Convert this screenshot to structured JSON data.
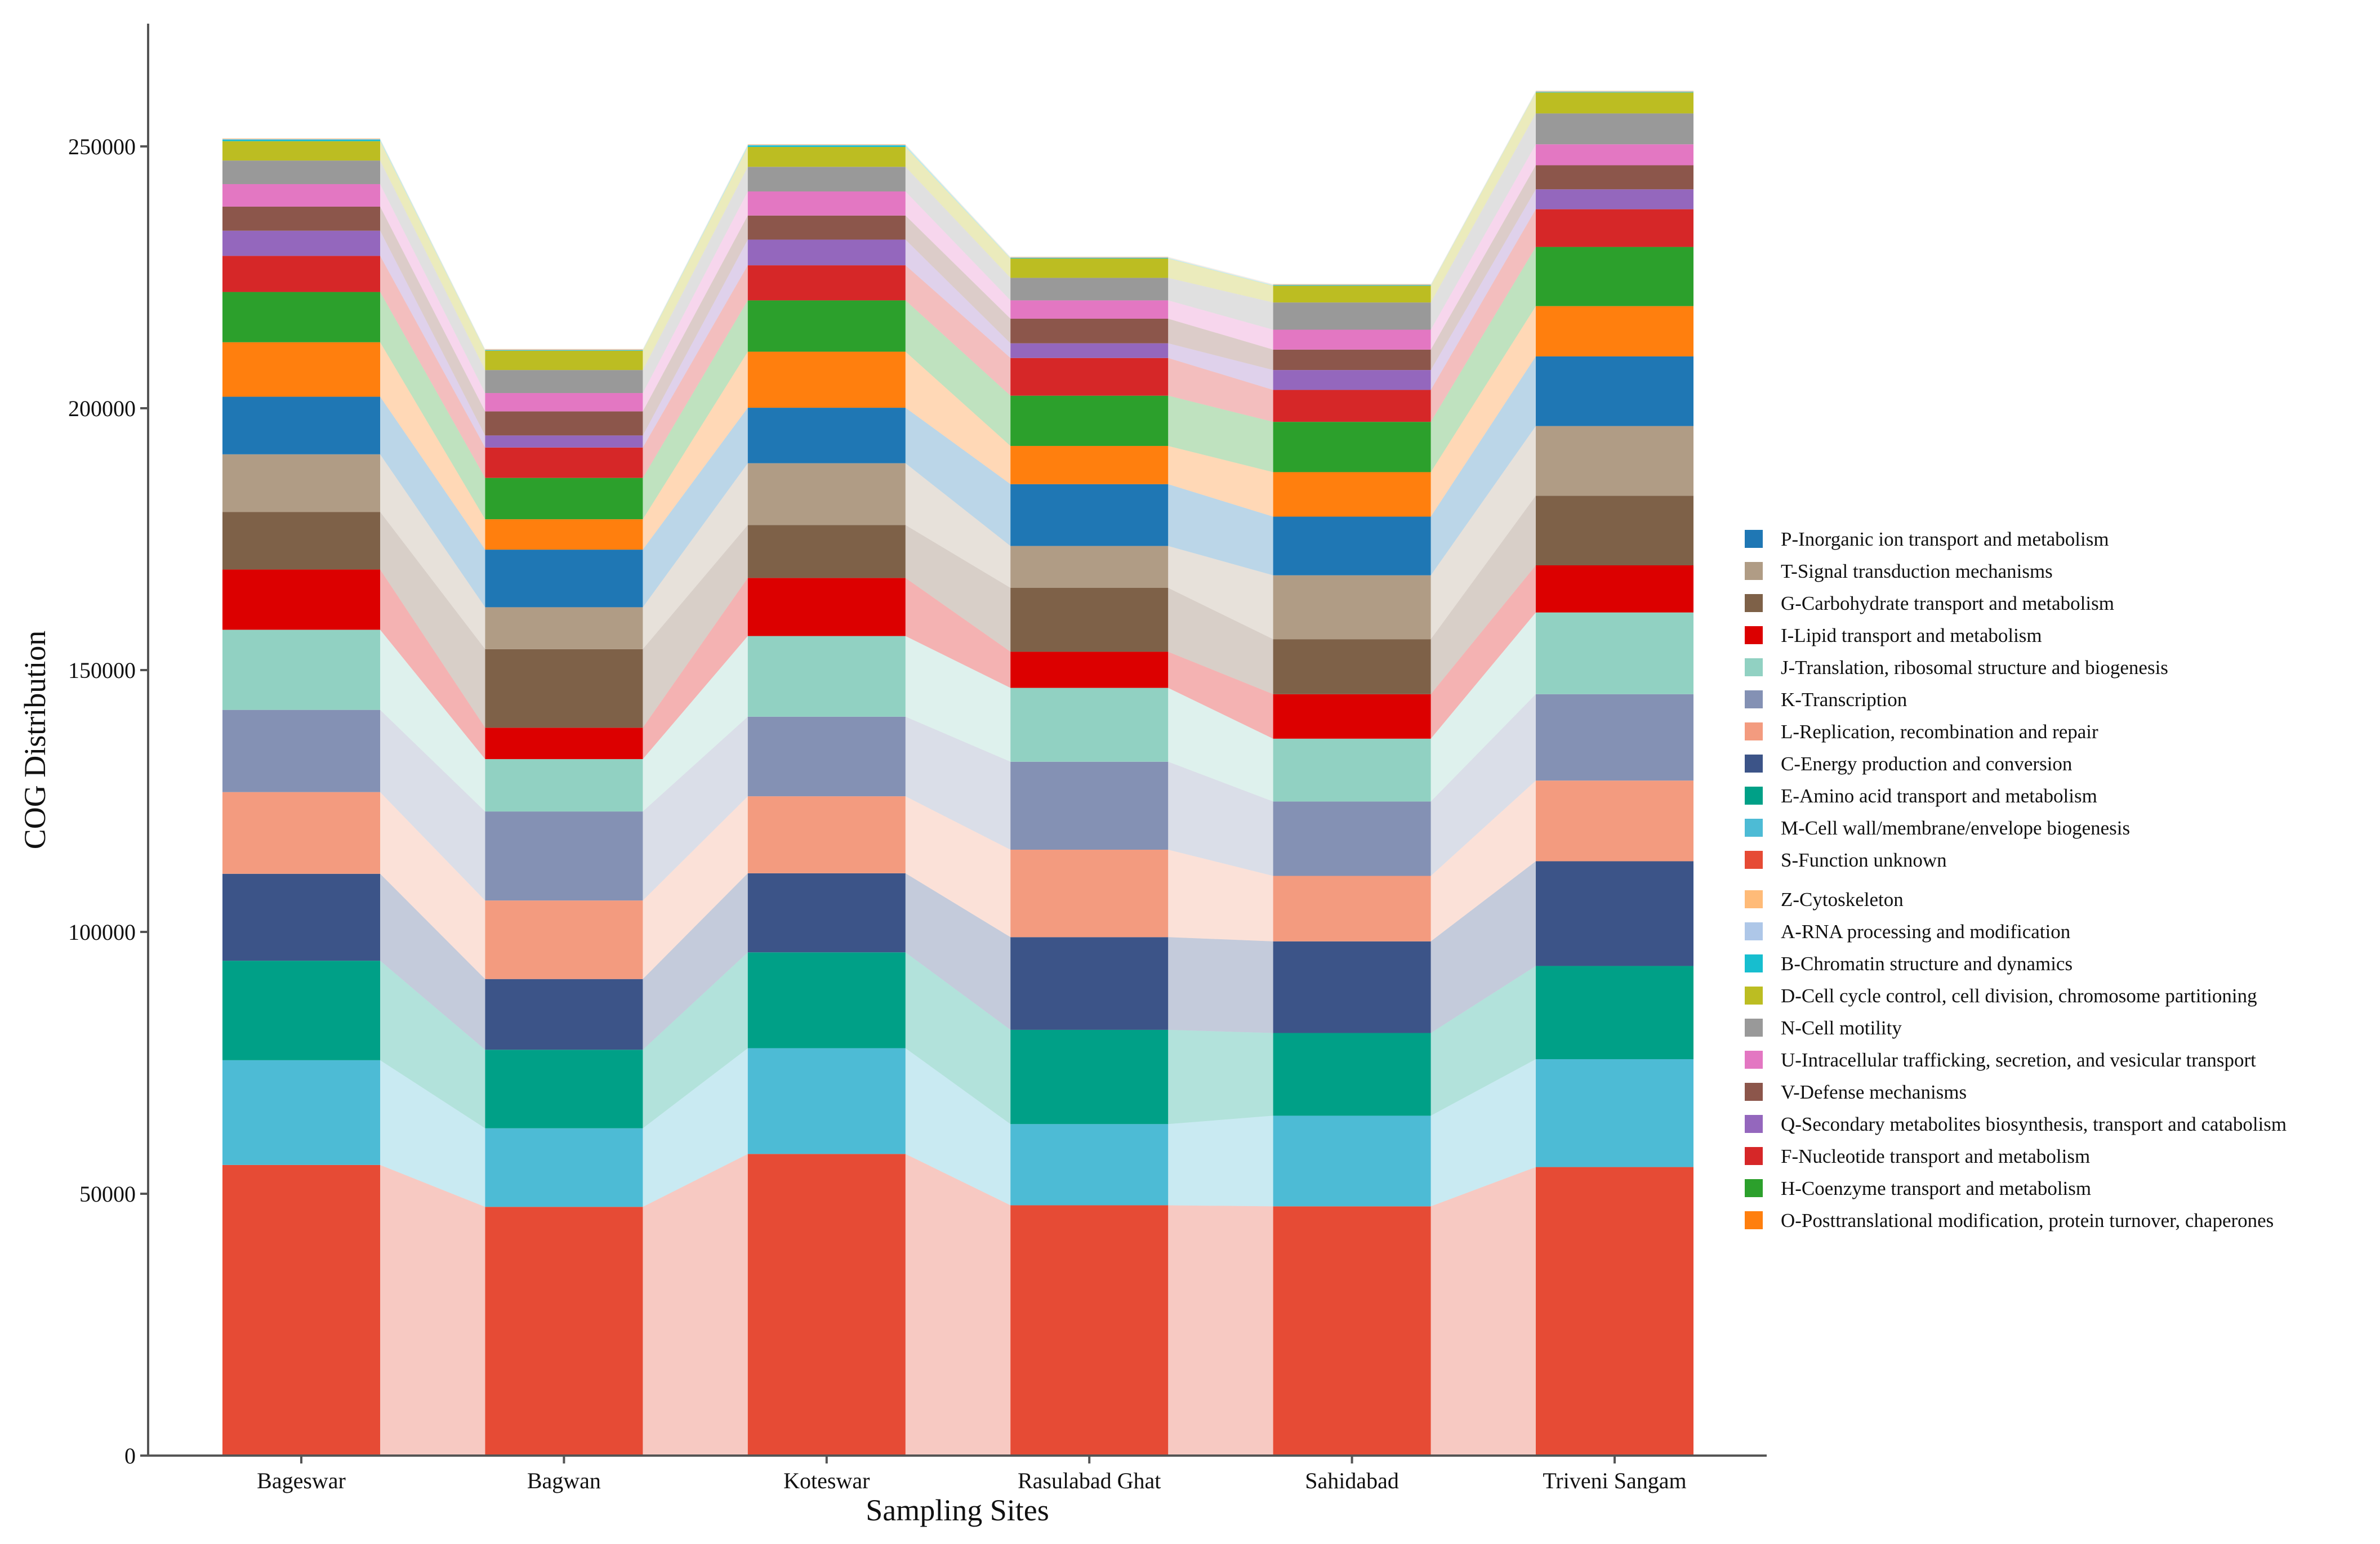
{
  "chart_data": {
    "type": "bar",
    "stacked": true,
    "xlabel": "Sampling Sites",
    "ylabel": "COG Distribution",
    "ylim": [
      0,
      260000
    ],
    "yticks": [
      0,
      50000,
      100000,
      150000,
      200000,
      250000
    ],
    "ytick_labels": [
      "0",
      "50000",
      "100000",
      "150000",
      "200000",
      "250000"
    ],
    "categories": [
      "Bageswar",
      "Bagwan",
      "Koteswar",
      "Rasulabad Ghat",
      "Sahidabad",
      "Triveni Sangam"
    ],
    "grid": false,
    "legend_position": "right",
    "series": [
      {
        "name": "S-Function unknown",
        "color": "#E64B35",
        "values": [
          55500,
          47500,
          57600,
          47800,
          47600,
          55100
        ]
      },
      {
        "name": "M-Cell wall/membrane/envelope biogenesis",
        "color": "#4DBBD5",
        "values": [
          20000,
          15000,
          20200,
          15500,
          17300,
          20600
        ]
      },
      {
        "name": "E-Amino acid transport and metabolism",
        "color": "#00A087",
        "values": [
          19000,
          15000,
          18300,
          18000,
          15800,
          17800
        ]
      },
      {
        "name": "C-Energy production and conversion",
        "color": "#3C5488",
        "values": [
          16600,
          13500,
          15100,
          17700,
          17500,
          20000
        ]
      },
      {
        "name": "L-Replication, recombination and repair",
        "color": "#F39B7F",
        "values": [
          15600,
          15000,
          14700,
          16700,
          12500,
          15400
        ]
      },
      {
        "name": "K-Transcription",
        "color": "#8491B4",
        "values": [
          15700,
          17000,
          15200,
          16800,
          14200,
          16500
        ]
      },
      {
        "name": "J-Translation, ribosomal structure and biogenesis",
        "color": "#91D1C2",
        "values": [
          15300,
          10000,
          15400,
          14100,
          12000,
          15600
        ]
      },
      {
        "name": "I-Lipid transport and metabolism",
        "color": "#DC0000",
        "values": [
          11500,
          6000,
          11100,
          6900,
          8500,
          9000
        ]
      },
      {
        "name": "G-Carbohydrate transport and metabolism",
        "color": "#7E6148",
        "values": [
          11000,
          15000,
          10100,
          12200,
          10500,
          13300
        ]
      },
      {
        "name": "T-Signal transduction mechanisms",
        "color": "#B09C85",
        "values": [
          11000,
          8000,
          11800,
          8000,
          12200,
          13300
        ]
      },
      {
        "name": "P-Inorganic ion transport and metabolism",
        "color": "#1F77B4",
        "values": [
          11000,
          11000,
          10600,
          11800,
          11200,
          13300
        ]
      },
      {
        "name": "O-Posttranslational modification, protein turnover, chaperones",
        "color": "#FF7F0E",
        "values": [
          10400,
          5800,
          10700,
          7300,
          8500,
          9600
        ]
      },
      {
        "name": "H-Coenzyme transport and metabolism",
        "color": "#2CA02C",
        "values": [
          9600,
          7900,
          9800,
          9600,
          9600,
          11300
        ]
      },
      {
        "name": "F-Nucleotide transport and metabolism",
        "color": "#D62728",
        "values": [
          6900,
          5800,
          6700,
          7200,
          6100,
          7200
        ]
      },
      {
        "name": "Q-Secondary metabolites biosynthesis, transport and catabolism",
        "color": "#9467BD",
        "values": [
          4800,
          2300,
          4900,
          2800,
          3800,
          3800
        ]
      },
      {
        "name": "V-Defense mechanisms",
        "color": "#8C564B",
        "values": [
          4600,
          4600,
          4600,
          4700,
          3900,
          4600
        ]
      },
      {
        "name": "U-Intracellular trafficking, secretion, and vesicular transport",
        "color": "#E377C2",
        "values": [
          4300,
          3500,
          4600,
          3500,
          3800,
          4000
        ]
      },
      {
        "name": "N-Cell motility",
        "color": "#999999",
        "values": [
          4500,
          4400,
          4700,
          4300,
          5200,
          5900
        ]
      },
      {
        "name": "D-Cell cycle control, cell division, chromosome partitioning",
        "color": "#BCBD22",
        "values": [
          3700,
          3700,
          3800,
          3700,
          3200,
          4000
        ]
      },
      {
        "name": "B-Chromatin structure and dynamics",
        "color": "#17BECF",
        "values": [
          300,
          100,
          300,
          100,
          100,
          100
        ]
      },
      {
        "name": "A-RNA processing and modification",
        "color": "#AEC7E8",
        "values": [
          100,
          100,
          100,
          100,
          100,
          100
        ]
      },
      {
        "name": "Z-Cytoskeleton",
        "color": "#FFBB78",
        "values": [
          100,
          100,
          100,
          100,
          100,
          100
        ]
      }
    ],
    "legend_groups": [
      [
        "P-Inorganic ion transport and metabolism",
        "T-Signal transduction mechanisms",
        "G-Carbohydrate transport and metabolism",
        "I-Lipid transport and metabolism",
        "J-Translation, ribosomal structure and biogenesis",
        "K-Transcription",
        "L-Replication, recombination and repair",
        "C-Energy production and conversion",
        "E-Amino acid transport and metabolism",
        "M-Cell wall/membrane/envelope biogenesis",
        "S-Function unknown"
      ],
      [
        "Z-Cytoskeleton",
        "A-RNA processing and modification",
        "B-Chromatin structure and dynamics",
        "D-Cell cycle control, cell division, chromosome partitioning",
        "N-Cell motility",
        "U-Intracellular trafficking, secretion, and vesicular transport",
        "V-Defense mechanisms",
        "Q-Secondary metabolites biosynthesis, transport and catabolism",
        "F-Nucleotide transport and metabolism",
        "H-Coenzyme transport and metabolism",
        "O-Posttranslational modification, protein turnover, chaperones"
      ]
    ]
  }
}
